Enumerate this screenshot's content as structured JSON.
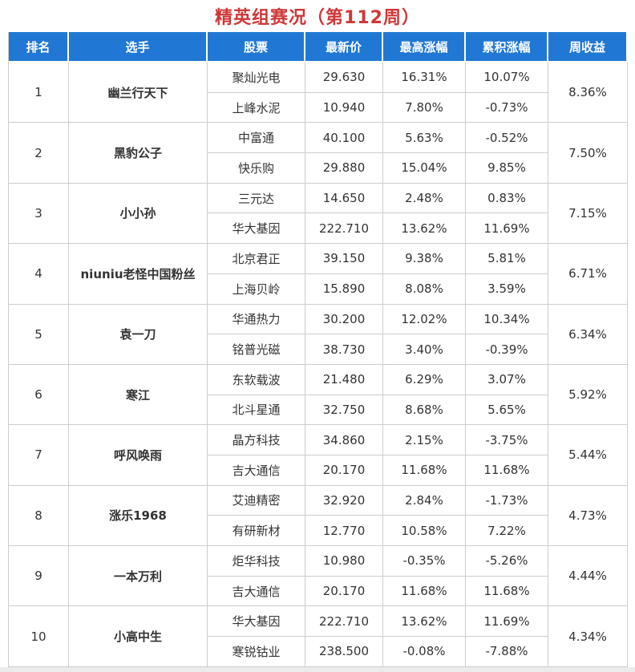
{
  "title": "精英组赛况（第112周）",
  "colors": {
    "title_red": "#cf3737",
    "header_bg": "#2178d4",
    "header_text": "#ffffff",
    "gain_red": "#e9392a",
    "loss_green": "#1f9d57",
    "player_link_blue": "#2061c8",
    "stock_link_blue": "#3357d8",
    "grid_border": "#cccccc",
    "scrollbar_gray": "#ebebeb"
  },
  "table": {
    "headers": [
      "排名",
      "选手",
      "股票",
      "最新价",
      "最高涨幅",
      "累积涨幅",
      "周收益"
    ],
    "players": [
      {
        "rank": "1",
        "name": "幽兰行天下",
        "weekly_return": "8.36%",
        "stocks": [
          {
            "name": "聚灿光电",
            "price": "29.630",
            "max_gain": "16.31%",
            "cum_gain": "10.07%"
          },
          {
            "name": "上峰水泥",
            "price": "10.940",
            "max_gain": "7.80%",
            "cum_gain": "-0.73%"
          }
        ]
      },
      {
        "rank": "2",
        "name": "黑豹公子",
        "weekly_return": "7.50%",
        "stocks": [
          {
            "name": "中富通",
            "price": "40.100",
            "max_gain": "5.63%",
            "cum_gain": "-0.52%"
          },
          {
            "name": "快乐购",
            "price": "29.880",
            "max_gain": "15.04%",
            "cum_gain": "9.85%"
          }
        ]
      },
      {
        "rank": "3",
        "name": "小小孙",
        "weekly_return": "7.15%",
        "stocks": [
          {
            "name": "三元达",
            "price": "14.650",
            "max_gain": "2.48%",
            "cum_gain": "0.83%"
          },
          {
            "name": "华大基因",
            "price": "222.710",
            "max_gain": "13.62%",
            "cum_gain": "11.69%"
          }
        ]
      },
      {
        "rank": "4",
        "name": "niuniu老怪中国粉丝",
        "weekly_return": "6.71%",
        "stocks": [
          {
            "name": "北京君正",
            "price": "39.150",
            "max_gain": "9.38%",
            "cum_gain": "5.81%"
          },
          {
            "name": "上海贝岭",
            "price": "15.890",
            "max_gain": "8.08%",
            "cum_gain": "3.59%"
          }
        ]
      },
      {
        "rank": "5",
        "name": "袁一刀",
        "weekly_return": "6.34%",
        "stocks": [
          {
            "name": "华通热力",
            "price": "30.200",
            "max_gain": "12.02%",
            "cum_gain": "10.34%"
          },
          {
            "name": "铭普光磁",
            "price": "38.730",
            "max_gain": "3.40%",
            "cum_gain": "-0.39%"
          }
        ]
      },
      {
        "rank": "6",
        "name": "寒江",
        "weekly_return": "5.92%",
        "stocks": [
          {
            "name": "东软载波",
            "price": "21.480",
            "max_gain": "6.29%",
            "cum_gain": "3.07%"
          },
          {
            "name": "北斗星通",
            "price": "32.750",
            "max_gain": "8.68%",
            "cum_gain": "5.65%"
          }
        ]
      },
      {
        "rank": "7",
        "name": "呼风唤雨",
        "weekly_return": "5.44%",
        "stocks": [
          {
            "name": "晶方科技",
            "price": "34.860",
            "max_gain": "2.15%",
            "cum_gain": "-3.75%"
          },
          {
            "name": "吉大通信",
            "price": "20.170",
            "max_gain": "11.68%",
            "cum_gain": "11.68%"
          }
        ]
      },
      {
        "rank": "8",
        "name": "涨乐1968",
        "weekly_return": "4.73%",
        "stocks": [
          {
            "name": "艾迪精密",
            "price": "32.920",
            "max_gain": "2.84%",
            "cum_gain": "-1.73%"
          },
          {
            "name": "有研新材",
            "price": "12.770",
            "max_gain": "10.58%",
            "cum_gain": "7.22%"
          }
        ]
      },
      {
        "rank": "9",
        "name": "一本万利",
        "weekly_return": "4.44%",
        "stocks": [
          {
            "name": "炬华科技",
            "price": "10.980",
            "max_gain": "-0.35%",
            "cum_gain": "-5.26%"
          },
          {
            "name": "吉大通信",
            "price": "20.170",
            "max_gain": "11.68%",
            "cum_gain": "11.68%"
          }
        ]
      },
      {
        "rank": "10",
        "name": "小高中生",
        "weekly_return": "4.34%",
        "stocks": [
          {
            "name": "华大基因",
            "price": "222.710",
            "max_gain": "13.62%",
            "cum_gain": "11.69%"
          },
          {
            "name": "寒锐钴业",
            "price": "238.500",
            "max_gain": "-0.08%",
            "cum_gain": "-7.88%"
          }
        ]
      }
    ]
  },
  "chart_data": {
    "type": "table",
    "title": "精英组赛况（第112周）",
    "columns": [
      "排名",
      "选手",
      "股票",
      "最新价",
      "最高涨幅",
      "累积涨幅",
      "周收益"
    ],
    "rows": [
      [
        "1",
        "幽兰行天下",
        "聚灿光电",
        "29.630",
        "16.31%",
        "10.07%",
        "8.36%"
      ],
      [
        "1",
        "幽兰行天下",
        "上峰水泥",
        "10.940",
        "7.80%",
        "-0.73%",
        "8.36%"
      ],
      [
        "2",
        "黑豹公子",
        "中富通",
        "40.100",
        "5.63%",
        "-0.52%",
        "7.50%"
      ],
      [
        "2",
        "黑豹公子",
        "快乐购",
        "29.880",
        "15.04%",
        "9.85%",
        "7.50%"
      ],
      [
        "3",
        "小小孙",
        "三元达",
        "14.650",
        "2.48%",
        "0.83%",
        "7.15%"
      ],
      [
        "3",
        "小小孙",
        "华大基因",
        "222.710",
        "13.62%",
        "11.69%",
        "7.15%"
      ],
      [
        "4",
        "niuniu老怪中国粉丝",
        "北京君正",
        "39.150",
        "9.38%",
        "5.81%",
        "6.71%"
      ],
      [
        "4",
        "niuniu老怪中国粉丝",
        "上海贝岭",
        "15.890",
        "8.08%",
        "3.59%",
        "6.71%"
      ],
      [
        "5",
        "袁一刀",
        "华通热力",
        "30.200",
        "12.02%",
        "10.34%",
        "6.34%"
      ],
      [
        "5",
        "袁一刀",
        "铭普光磁",
        "38.730",
        "3.40%",
        "-0.39%",
        "6.34%"
      ],
      [
        "6",
        "寒江",
        "东软载波",
        "21.480",
        "6.29%",
        "3.07%",
        "5.92%"
      ],
      [
        "6",
        "寒江",
        "北斗星通",
        "32.750",
        "8.68%",
        "5.65%",
        "5.92%"
      ],
      [
        "7",
        "呼风唤雨",
        "晶方科技",
        "34.860",
        "2.15%",
        "-3.75%",
        "5.44%"
      ],
      [
        "7",
        "呼风唤雨",
        "吉大通信",
        "20.170",
        "11.68%",
        "11.68%",
        "5.44%"
      ],
      [
        "8",
        "涨乐1968",
        "艾迪精密",
        "32.920",
        "2.84%",
        "-1.73%",
        "4.73%"
      ],
      [
        "8",
        "涨乐1968",
        "有研新材",
        "12.770",
        "10.58%",
        "7.22%",
        "4.73%"
      ],
      [
        "9",
        "一本万利",
        "炬华科技",
        "10.980",
        "-0.35%",
        "-5.26%",
        "4.44%"
      ],
      [
        "9",
        "一本万利",
        "吉大通信",
        "20.170",
        "11.68%",
        "11.68%",
        "4.44%"
      ],
      [
        "10",
        "小高中生",
        "华大基因",
        "222.710",
        "13.62%",
        "11.69%",
        "4.34%"
      ],
      [
        "10",
        "小高中生",
        "寒锐钴业",
        "238.500",
        "-0.08%",
        "-7.88%",
        "4.34%"
      ]
    ]
  }
}
